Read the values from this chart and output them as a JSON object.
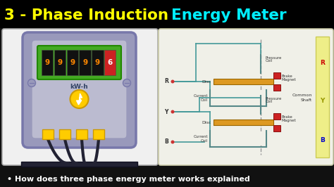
{
  "title_part1": "3 - Phase Induction ",
  "title_part2": "Energy Meter",
  "title_color1": "#FFFF00",
  "title_color2": "#00EEFF",
  "background_color": "#111111",
  "subtitle": "• How does three phase energy meter works explained",
  "subtitle_color": "#ffffff",
  "panel_left_bg": "#f0f0f0",
  "panel_right_bg": "#f0f0e8",
  "meter_outer_color": "#8888aa",
  "meter_face_color": "#aaaacc",
  "meter_display_color": "#44aa22",
  "digit_bg": "#111111",
  "digit_color": "#ff8800",
  "last_digit_bg": "#cc2222",
  "last_digit_color": "#ffffff",
  "kw_h_label": "kW-h",
  "bolt_circle_color": "#ffcc00",
  "screw_color": "#9999bb",
  "wire_terminal_color": "#ffcc00",
  "wire_color": "#222233",
  "teal_line": "#449999",
  "disc_color": "#dd9922",
  "brake_color": "#cc2222",
  "coil_color": "#558888",
  "yellow_strip": "#eeee88",
  "dashed_color": "#999999",
  "panel_edge": "#ccccaa"
}
